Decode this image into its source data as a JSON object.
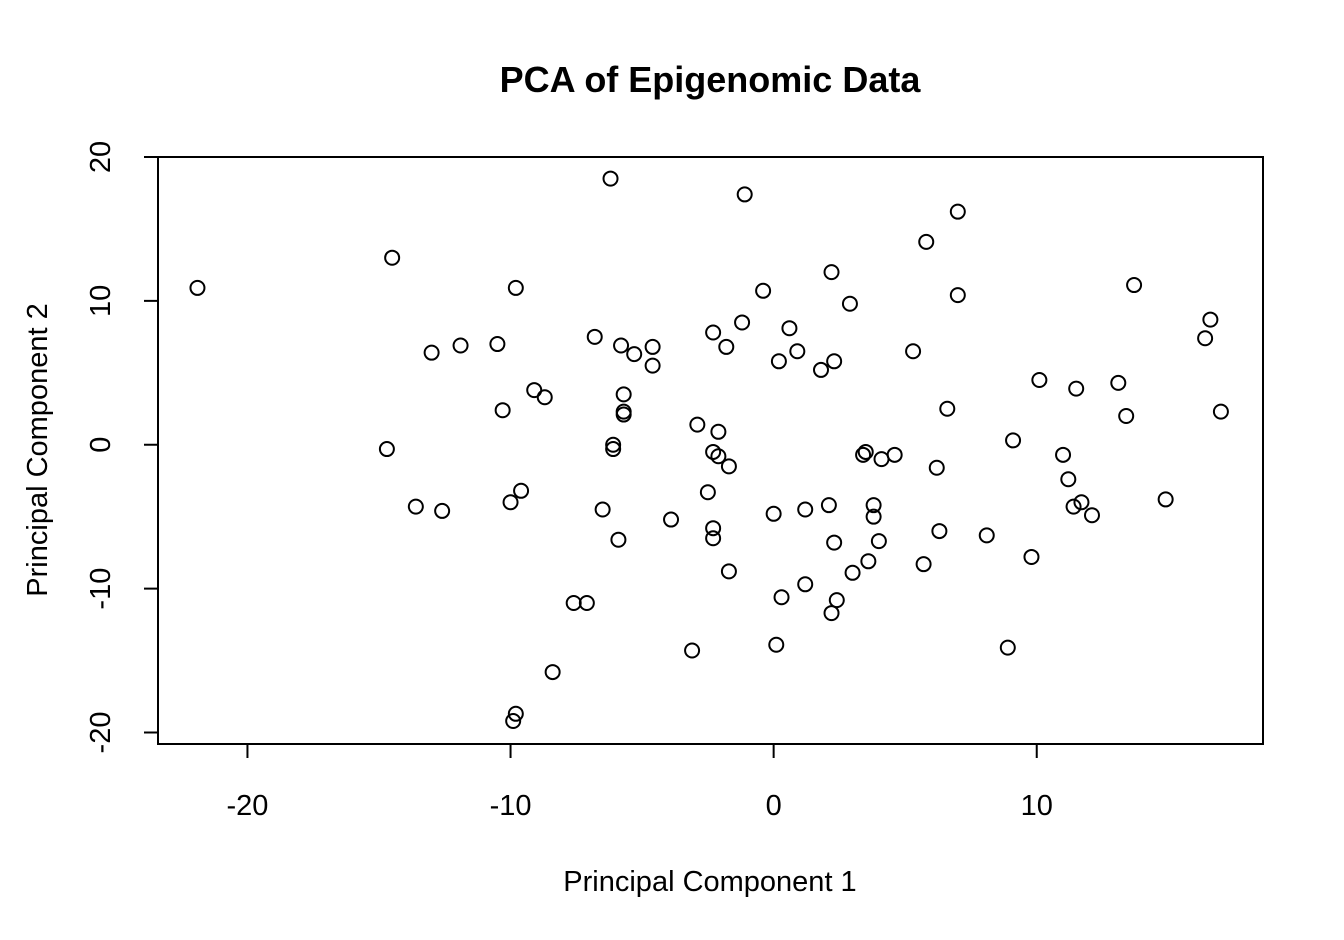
{
  "chart_data": {
    "type": "scatter",
    "title": "PCA of Epigenomic Data",
    "xlabel": "Principal Component 1",
    "ylabel": "Principal Component 2",
    "xlim": [
      -23.4,
      18.6
    ],
    "ylim": [
      -20.8,
      20.0
    ],
    "xticks": [
      -20,
      -10,
      0,
      10
    ],
    "yticks": [
      -20,
      -10,
      0,
      10,
      20
    ],
    "xtick_labels": [
      "-20",
      "-10",
      "0",
      "10"
    ],
    "ytick_labels": [
      "-20",
      "-10",
      "0",
      "10",
      "20"
    ],
    "grid": false,
    "legend": "none",
    "points": [
      {
        "x": -21.9,
        "y": 10.9
      },
      {
        "x": -14.5,
        "y": 13.0
      },
      {
        "x": -14.7,
        "y": -0.3
      },
      {
        "x": -13.6,
        "y": -4.3
      },
      {
        "x": -13.0,
        "y": 6.4
      },
      {
        "x": -12.6,
        "y": -4.6
      },
      {
        "x": -11.9,
        "y": 6.9
      },
      {
        "x": -10.5,
        "y": 7.0
      },
      {
        "x": -10.3,
        "y": 2.4
      },
      {
        "x": -10.0,
        "y": -4.0
      },
      {
        "x": -9.8,
        "y": 10.9
      },
      {
        "x": -9.6,
        "y": -3.2
      },
      {
        "x": -9.1,
        "y": 3.8
      },
      {
        "x": -8.7,
        "y": 3.3
      },
      {
        "x": -9.8,
        "y": -18.7
      },
      {
        "x": -9.9,
        "y": -19.2
      },
      {
        "x": -8.4,
        "y": -15.8
      },
      {
        "x": -7.6,
        "y": -11.0
      },
      {
        "x": -7.1,
        "y": -11.0
      },
      {
        "x": -6.8,
        "y": 7.5
      },
      {
        "x": -6.5,
        "y": -4.5
      },
      {
        "x": -6.2,
        "y": 18.5
      },
      {
        "x": -6.1,
        "y": 0.0
      },
      {
        "x": -6.1,
        "y": -0.3
      },
      {
        "x": -5.9,
        "y": -6.6
      },
      {
        "x": -5.8,
        "y": 6.9
      },
      {
        "x": -5.7,
        "y": 3.5
      },
      {
        "x": -5.7,
        "y": 2.3
      },
      {
        "x": -5.7,
        "y": 2.1
      },
      {
        "x": -5.3,
        "y": 6.3
      },
      {
        "x": -4.6,
        "y": 6.8
      },
      {
        "x": -4.6,
        "y": 5.5
      },
      {
        "x": -3.9,
        "y": -5.2
      },
      {
        "x": -3.1,
        "y": -14.3
      },
      {
        "x": -2.9,
        "y": 1.4
      },
      {
        "x": -2.5,
        "y": -3.3
      },
      {
        "x": -2.3,
        "y": 7.8
      },
      {
        "x": -2.3,
        "y": -0.5
      },
      {
        "x": -2.3,
        "y": -5.8
      },
      {
        "x": -2.3,
        "y": -6.5
      },
      {
        "x": -2.1,
        "y": 0.9
      },
      {
        "x": -2.1,
        "y": -0.8
      },
      {
        "x": -1.8,
        "y": 6.8
      },
      {
        "x": -1.7,
        "y": -1.5
      },
      {
        "x": -1.7,
        "y": -8.8
      },
      {
        "x": -1.2,
        "y": 8.5
      },
      {
        "x": -1.1,
        "y": 17.4
      },
      {
        "x": -0.4,
        "y": 10.7
      },
      {
        "x": 0.0,
        "y": -4.8
      },
      {
        "x": 0.1,
        "y": -13.9
      },
      {
        "x": 0.2,
        "y": 5.8
      },
      {
        "x": 0.3,
        "y": -10.6
      },
      {
        "x": 0.6,
        "y": 8.1
      },
      {
        "x": 0.9,
        "y": 6.5
      },
      {
        "x": 1.2,
        "y": -4.5
      },
      {
        "x": 1.2,
        "y": -9.7
      },
      {
        "x": 1.8,
        "y": 5.2
      },
      {
        "x": 2.1,
        "y": -4.2
      },
      {
        "x": 2.2,
        "y": 12.0
      },
      {
        "x": 2.2,
        "y": -11.7
      },
      {
        "x": 2.3,
        "y": 5.8
      },
      {
        "x": 2.3,
        "y": -6.8
      },
      {
        "x": 2.4,
        "y": -10.8
      },
      {
        "x": 2.9,
        "y": 9.8
      },
      {
        "x": 3.0,
        "y": -8.9
      },
      {
        "x": 3.4,
        "y": -0.7
      },
      {
        "x": 3.5,
        "y": -0.5
      },
      {
        "x": 3.6,
        "y": -8.1
      },
      {
        "x": 3.8,
        "y": -4.2
      },
      {
        "x": 3.8,
        "y": -5.0
      },
      {
        "x": 4.0,
        "y": -6.7
      },
      {
        "x": 4.1,
        "y": -1.0
      },
      {
        "x": 4.6,
        "y": -0.7
      },
      {
        "x": 5.3,
        "y": 6.5
      },
      {
        "x": 5.7,
        "y": -8.3
      },
      {
        "x": 5.8,
        "y": 14.1
      },
      {
        "x": 6.2,
        "y": -1.6
      },
      {
        "x": 6.3,
        "y": -6.0
      },
      {
        "x": 6.6,
        "y": 2.5
      },
      {
        "x": 7.0,
        "y": 16.2
      },
      {
        "x": 7.0,
        "y": 10.4
      },
      {
        "x": 8.1,
        "y": -6.3
      },
      {
        "x": 8.9,
        "y": -14.1
      },
      {
        "x": 9.1,
        "y": 0.3
      },
      {
        "x": 9.8,
        "y": -7.8
      },
      {
        "x": 10.1,
        "y": 4.5
      },
      {
        "x": 11.0,
        "y": -0.7
      },
      {
        "x": 11.2,
        "y": -2.4
      },
      {
        "x": 11.4,
        "y": -4.3
      },
      {
        "x": 11.5,
        "y": 3.9
      },
      {
        "x": 11.7,
        "y": -4.0
      },
      {
        "x": 12.1,
        "y": -4.9
      },
      {
        "x": 13.1,
        "y": 4.3
      },
      {
        "x": 13.4,
        "y": 2.0
      },
      {
        "x": 13.7,
        "y": 11.1
      },
      {
        "x": 14.9,
        "y": -3.8
      },
      {
        "x": 16.4,
        "y": 7.4
      },
      {
        "x": 16.6,
        "y": 8.7
      },
      {
        "x": 17.0,
        "y": 2.3
      }
    ]
  }
}
